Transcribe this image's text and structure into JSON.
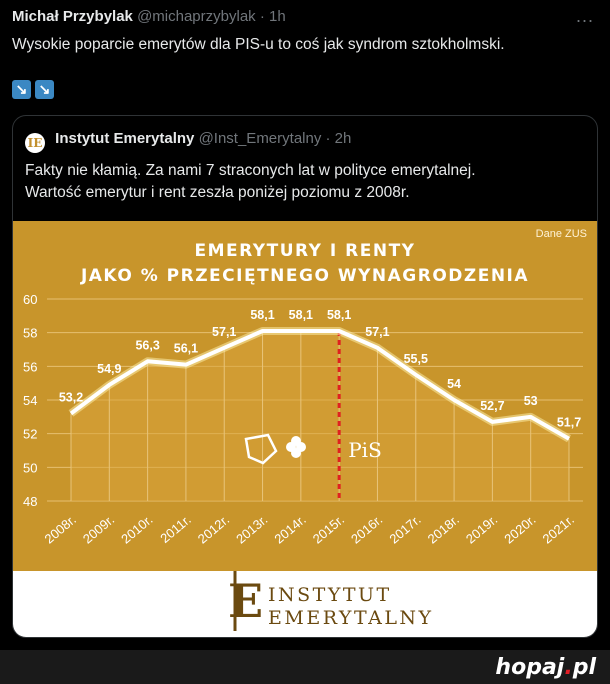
{
  "tweet": {
    "author_name": "Michał Przybylak",
    "author_handle": "@michaprzybylak",
    "time": "· 1h",
    "text": "Wysokie poparcie emerytów dla PIS-u to coś jak syndrom sztokholmski.",
    "emojis": [
      "↘",
      "↘"
    ]
  },
  "quote": {
    "logo_letter": "IE",
    "author_name": "Instytut Emerytalny",
    "author_handle": "@Inst_Emerytalny",
    "time": "· 2h",
    "text_line1": "Fakty nie kłamią. Za nami 7 straconych lat w polityce emerytalnej.",
    "text_line2": "Wartość emerytur i rent zeszła poniżej poziomu z 2008r."
  },
  "chart_data": {
    "type": "line",
    "title": "EMERYTURY I RENTY",
    "subtitle": "JAKO % PRZECIĘTNEGO WYNAGRODZENIA",
    "source": "Dane ZUS",
    "categories": [
      "2008r.",
      "2009r.",
      "2010r.",
      "2011r.",
      "2012r.",
      "2013r.",
      "2014r.",
      "2015r.",
      "2016r.",
      "2017r.",
      "2018r.",
      "2019r.",
      "2020r.",
      "2021r."
    ],
    "values": [
      53.2,
      54.9,
      56.3,
      56.1,
      57.1,
      58.1,
      58.1,
      58.1,
      57.1,
      55.5,
      54,
      52.7,
      53,
      51.7
    ],
    "data_labels": [
      "53,2",
      "54,9",
      "56,3",
      "56,1",
      "57,1",
      "58,1",
      "58,1",
      "58,1",
      "57,1",
      "55,5",
      "54",
      "52,7",
      "53",
      "51,7"
    ],
    "y_ticks": [
      48,
      50,
      52,
      54,
      56,
      58,
      60
    ],
    "ylim": [
      48,
      60
    ],
    "divider_after": "2015r.",
    "party_logo_text": "PiS",
    "footer_line1": "INSTYTUT",
    "footer_line2": "EMERYTALNY",
    "colors": {
      "background": "#c8952b",
      "line": "#ffffff",
      "divider": "#e02020",
      "footer_text": "#6b4a10"
    }
  },
  "watermark": {
    "name": "hopaj",
    "dot": ".",
    "tld": "pl"
  },
  "more_icon": "..."
}
